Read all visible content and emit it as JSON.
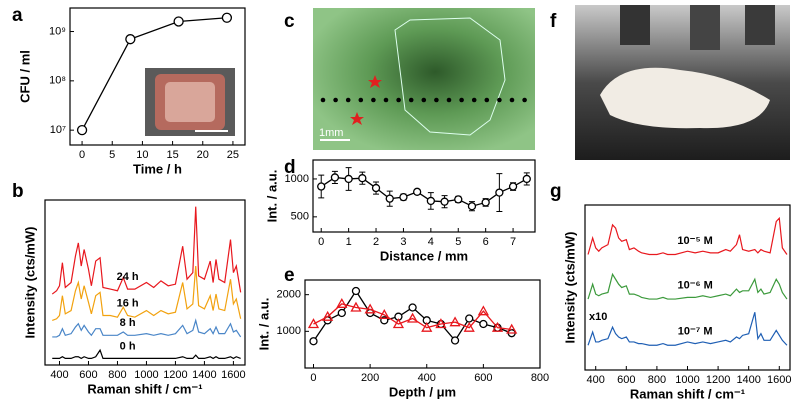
{
  "chart_data": [
    {
      "type": "line",
      "label": "a",
      "xlabel": "Time / h",
      "ylabel": "CFU / ml",
      "log_y": true,
      "x": [
        0,
        8,
        16,
        24
      ],
      "series": [
        {
          "color": "#000000",
          "marker": "o",
          "values": [
            10000000,
            700000000,
            1600000000,
            1900000000
          ]
        }
      ],
      "xlim": [
        -2,
        27
      ],
      "xticks": [
        0,
        5,
        10,
        15,
        20,
        25
      ],
      "ylim": [
        5000000,
        3000000000
      ],
      "yticks": [
        {
          "value": 10000000,
          "label": "10⁷"
        },
        {
          "value": 100000000,
          "label": "10⁸"
        },
        {
          "value": 1000000000,
          "label": "10⁹"
        }
      ]
    },
    {
      "type": "spectra",
      "label": "b",
      "xlabel": "Raman shift / cm⁻¹",
      "ylabel": "Intensity (cts/mW)",
      "x": [
        350,
        380,
        400,
        420,
        440,
        480,
        510,
        530,
        550,
        570,
        600,
        620,
        650,
        680,
        700,
        750,
        800,
        840,
        870,
        920,
        1000,
        1050,
        1100,
        1150,
        1200,
        1250,
        1280,
        1320,
        1340,
        1360,
        1400,
        1440,
        1460,
        1480,
        1500,
        1540,
        1580,
        1600,
        1620,
        1650
      ],
      "series": [
        {
          "name": "24 h",
          "color": "#e8181e",
          "values": [
            43,
            45,
            48,
            62,
            47,
            50,
            66,
            74,
            60,
            70,
            58,
            48,
            63,
            65,
            47,
            46,
            45,
            53,
            46,
            46,
            50,
            47,
            51,
            48,
            49,
            72,
            52,
            56,
            96,
            54,
            52,
            63,
            50,
            64,
            52,
            50,
            76,
            56,
            60,
            44
          ]
        },
        {
          "name": "16 h",
          "color": "#f2a20f",
          "values": [
            27,
            28,
            30,
            42,
            31,
            33,
            45,
            50,
            40,
            48,
            38,
            31,
            42,
            44,
            30,
            30,
            29,
            35,
            30,
            29,
            33,
            30,
            33,
            31,
            32,
            50,
            34,
            37,
            60,
            36,
            34,
            42,
            33,
            43,
            34,
            33,
            52,
            37,
            40,
            28
          ]
        },
        {
          "name": "8 h",
          "color": "#4a86c8",
          "values": [
            17,
            17,
            18,
            22,
            18,
            19,
            23,
            25,
            21,
            24,
            20,
            18,
            22,
            22,
            18,
            18,
            18,
            20,
            18,
            18,
            19,
            18,
            19,
            18,
            19,
            24,
            19,
            21,
            27,
            20,
            19,
            22,
            19,
            23,
            19,
            19,
            25,
            20,
            21,
            17
          ]
        },
        {
          "name": "0 h",
          "color": "#000000",
          "values": [
            4,
            4,
            4,
            5,
            4,
            4,
            5,
            5,
            4,
            5,
            4,
            4,
            5,
            9,
            4,
            4,
            4,
            4,
            4,
            4,
            4,
            4,
            4,
            4,
            4,
            5,
            4,
            4,
            6,
            4,
            4,
            5,
            4,
            5,
            4,
            4,
            5,
            4,
            5,
            4
          ]
        }
      ],
      "xlim": [
        300,
        1680
      ],
      "xticks": [
        400,
        600,
        800,
        1000,
        1200,
        1400,
        1600
      ],
      "ylim": [
        0,
        100
      ],
      "yticks": []
    },
    {
      "type": "image",
      "label": "c",
      "annotations": [
        "1mm"
      ]
    },
    {
      "type": "line",
      "label": "d",
      "xlabel": "Distance / mm",
      "ylabel": "Int. / a.u.",
      "x": [
        0,
        0.5,
        1,
        1.5,
        2,
        2.5,
        3,
        3.5,
        4,
        4.5,
        5,
        5.5,
        6,
        6.5,
        7,
        7.5
      ],
      "series": [
        {
          "color": "#000000",
          "marker": "o",
          "values": [
            900,
            1020,
            1000,
            1010,
            880,
            740,
            760,
            830,
            710,
            700,
            730,
            640,
            690,
            820,
            900,
            1000
          ],
          "errors": [
            150,
            80,
            150,
            80,
            80,
            100,
            40,
            30,
            110,
            80,
            40,
            60,
            50,
            250,
            50,
            80
          ]
        }
      ],
      "xlim": [
        -0.3,
        7.8
      ],
      "xticks": [
        0,
        1,
        2,
        3,
        4,
        5,
        6,
        7
      ],
      "ylim": [
        300,
        1250
      ],
      "yticks": [
        500,
        1000
      ]
    },
    {
      "type": "line",
      "label": "e",
      "xlabel": "Depth / μm",
      "ylabel": "Int. / a.u.",
      "x": [
        0,
        50,
        100,
        150,
        200,
        250,
        300,
        350,
        400,
        450,
        500,
        550,
        600,
        650,
        700
      ],
      "series": [
        {
          "color": "#000000",
          "marker": "o",
          "values": [
            730,
            1300,
            1500,
            2100,
            1500,
            1300,
            1400,
            1650,
            1300,
            1200,
            750,
            1350,
            1200,
            1100,
            950
          ]
        },
        {
          "color": "#e8181e",
          "marker": "^",
          "values": [
            1200,
            1400,
            1750,
            1650,
            1600,
            1450,
            1200,
            1350,
            1100,
            1200,
            1250,
            1100,
            1550,
            1100,
            1050
          ]
        }
      ],
      "xlim": [
        -30,
        800
      ],
      "xticks": [
        0,
        200,
        400,
        600,
        800
      ],
      "ylim": [
        0,
        2400
      ],
      "yticks": [
        1000,
        2000
      ]
    },
    {
      "type": "image",
      "label": "f",
      "annotations": []
    },
    {
      "type": "spectra",
      "label": "g",
      "xlabel": "Raman shift / cm⁻¹",
      "ylabel": "Intensity (cts/mW)",
      "annotations": [
        "x10"
      ],
      "x": [
        350,
        380,
        400,
        420,
        440,
        480,
        510,
        530,
        550,
        570,
        600,
        620,
        650,
        680,
        700,
        750,
        800,
        840,
        870,
        920,
        1000,
        1050,
        1100,
        1150,
        1200,
        1250,
        1280,
        1320,
        1340,
        1360,
        1400,
        1440,
        1460,
        1480,
        1500,
        1540,
        1580,
        1600,
        1620,
        1650
      ],
      "series": [
        {
          "name": "10⁻⁵ M",
          "color": "#e8181e",
          "values": [
            70,
            80,
            74,
            72,
            74,
            76,
            88,
            86,
            80,
            78,
            79,
            73,
            74,
            72,
            71,
            70,
            70,
            71,
            70,
            70,
            72,
            71,
            72,
            71,
            71,
            73,
            72,
            76,
            82,
            73,
            72,
            73,
            71,
            73,
            72,
            71,
            90,
            92,
            74,
            70
          ]
        },
        {
          "name": "10⁻⁶ M",
          "color": "#3c9a3c",
          "values": [
            43,
            52,
            46,
            45,
            46,
            47,
            58,
            55,
            52,
            50,
            51,
            46,
            46,
            45,
            44,
            43,
            43,
            44,
            43,
            43,
            44,
            44,
            45,
            44,
            45,
            46,
            45,
            49,
            47,
            48,
            48,
            55,
            47,
            49,
            46,
            47,
            55,
            52,
            47,
            43
          ]
        },
        {
          "name": "10⁻⁷ M",
          "color": "#1f5fb4",
          "values": [
            15,
            23,
            17,
            17,
            18,
            19,
            26,
            22,
            20,
            19,
            20,
            17,
            17,
            16,
            16,
            15,
            15,
            16,
            15,
            15,
            17,
            16,
            17,
            16,
            17,
            18,
            17,
            20,
            19,
            21,
            22,
            35,
            19,
            22,
            18,
            18,
            24,
            21,
            18,
            15
          ]
        }
      ],
      "xlim": [
        330,
        1670
      ],
      "xticks": [
        400,
        600,
        800,
        1000,
        1200,
        1400,
        1600
      ],
      "ylim": [
        0,
        100
      ],
      "yticks": []
    }
  ]
}
